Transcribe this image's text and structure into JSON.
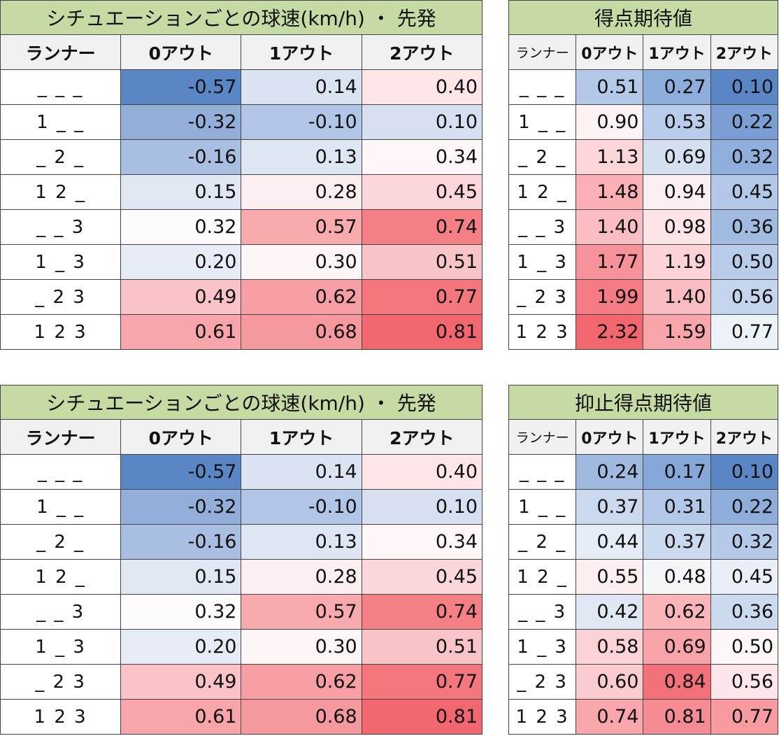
{
  "chart_data": [
    {
      "type": "table",
      "title": "シチュエーションごとの球速(km/h) ・ 先発",
      "columns": [
        "ランナー",
        "0アウト",
        "1アウト",
        "2アウト"
      ],
      "rows": [
        "_ _ _",
        "1 _ _",
        "_ 2 _",
        "1 2 _",
        "_ _ 3",
        "1 _ 3",
        "_ 2 3",
        "1 2 3"
      ],
      "values": [
        [
          "-0.57",
          "0.14",
          "0.40"
        ],
        [
          "-0.32",
          "-0.10",
          "0.10"
        ],
        [
          "-0.16",
          "0.13",
          "0.34"
        ],
        [
          "0.15",
          "0.28",
          "0.45"
        ],
        [
          "0.32",
          "0.57",
          "0.74"
        ],
        [
          "0.20",
          "0.30",
          "0.51"
        ],
        [
          "0.49",
          "0.62",
          "0.77"
        ],
        [
          "0.61",
          "0.68",
          "0.81"
        ]
      ],
      "colors": [
        [
          "#5a86c6",
          "#dae3f2",
          "#fde5e8"
        ],
        [
          "#93afd9",
          "#b1c6e6",
          "#d7e0f0"
        ],
        [
          "#a8bfe2",
          "#dfe6f3",
          "#fef6f7"
        ],
        [
          "#e0e7f3",
          "#fdeff1",
          "#fbd7dc"
        ],
        [
          "#fefbfc",
          "#f8aaaf",
          "#f47f85"
        ],
        [
          "#e6ebf5",
          "#fef5f6",
          "#f9c4c8"
        ],
        [
          "#fac3c7",
          "#f79fa5",
          "#f3777d"
        ],
        [
          "#f7a5aa",
          "#f6999f",
          "#f2676f"
        ]
      ]
    },
    {
      "type": "table",
      "title": "得点期待値",
      "columns": [
        "ランナー",
        "0アウト",
        "1アウト",
        "2アウト"
      ],
      "rows": [
        "_ _ _",
        "1 _ _",
        "_ 2 _",
        "1 2 _",
        "_ _ 3",
        "1 _ 3",
        "_ 2 3",
        "1 2 3"
      ],
      "values": [
        [
          "0.51",
          "0.27",
          "0.10"
        ],
        [
          "0.90",
          "0.53",
          "0.22"
        ],
        [
          "1.13",
          "0.69",
          "0.32"
        ],
        [
          "1.48",
          "0.94",
          "0.45"
        ],
        [
          "1.40",
          "0.98",
          "0.36"
        ],
        [
          "1.77",
          "1.19",
          "0.50"
        ],
        [
          "1.99",
          "1.40",
          "0.56"
        ],
        [
          "2.32",
          "1.59",
          "0.77"
        ]
      ],
      "colors": [
        [
          "#b4c9e8",
          "#8daddb",
          "#5a86c6"
        ],
        [
          "#fef3f4",
          "#b9cce9",
          "#7b9fd4"
        ],
        [
          "#fdd6da",
          "#d4dff0",
          "#90aedb"
        ],
        [
          "#fab0b5",
          "#fceff1",
          "#b3c8e8"
        ],
        [
          "#fabec2",
          "#fce4e7",
          "#a0bae0"
        ],
        [
          "#f7929a",
          "#fdd3d7",
          "#b9cce9"
        ],
        [
          "#f57c84",
          "#fabec2",
          "#c4d4ec"
        ],
        [
          "#f2676f",
          "#f8a6ac",
          "#edf1f8"
        ]
      ]
    },
    {
      "type": "table",
      "title": "シチュエーションごとの球速(km/h) ・ 先発",
      "columns": [
        "ランナー",
        "0アウト",
        "1アウト",
        "2アウト"
      ],
      "rows": [
        "_ _ _",
        "1 _ _",
        "_ 2 _",
        "1 2 _",
        "_ _ 3",
        "1 _ 3",
        "_ 2 3",
        "1 2 3"
      ],
      "values": [
        [
          "-0.57",
          "0.14",
          "0.40"
        ],
        [
          "-0.32",
          "-0.10",
          "0.10"
        ],
        [
          "-0.16",
          "0.13",
          "0.34"
        ],
        [
          "0.15",
          "0.28",
          "0.45"
        ],
        [
          "0.32",
          "0.57",
          "0.74"
        ],
        [
          "0.20",
          "0.30",
          "0.51"
        ],
        [
          "0.49",
          "0.62",
          "0.77"
        ],
        [
          "0.61",
          "0.68",
          "0.81"
        ]
      ],
      "colors": [
        [
          "#5a86c6",
          "#dae3f2",
          "#fde5e8"
        ],
        [
          "#93afd9",
          "#b1c6e6",
          "#d7e0f0"
        ],
        [
          "#a8bfe2",
          "#dfe6f3",
          "#fef6f7"
        ],
        [
          "#e0e7f3",
          "#fdeff1",
          "#fbd7dc"
        ],
        [
          "#fefbfc",
          "#f8aaaf",
          "#f47f85"
        ],
        [
          "#e6ebf5",
          "#fef5f6",
          "#f9c4c8"
        ],
        [
          "#fac3c7",
          "#f79fa5",
          "#f3777d"
        ],
        [
          "#f7a5aa",
          "#f6999f",
          "#f2676f"
        ]
      ]
    },
    {
      "type": "table",
      "title": "抑止得点期待値",
      "columns": [
        "ランナー",
        "0アウト",
        "1アウト",
        "2アウト"
      ],
      "rows": [
        "_ _ _",
        "1 _ _",
        "_ 2 _",
        "1 2 _",
        "_ _ 3",
        "1 _ 3",
        "_ 2 3",
        "1 2 3"
      ],
      "values": [
        [
          "0.24",
          "0.17",
          "0.10"
        ],
        [
          "0.37",
          "0.31",
          "0.22"
        ],
        [
          "0.44",
          "0.37",
          "0.32"
        ],
        [
          "0.55",
          "0.48",
          "0.45"
        ],
        [
          "0.42",
          "0.62",
          "0.36"
        ],
        [
          "0.58",
          "0.69",
          "0.50"
        ],
        [
          "0.60",
          "0.84",
          "0.56"
        ],
        [
          "0.74",
          "0.81",
          "0.77"
        ]
      ],
      "colors": [
        [
          "#9fb9df",
          "#86a8d8",
          "#5a86c6"
        ],
        [
          "#cbd9ee",
          "#b3c8e8",
          "#8fadda"
        ],
        [
          "#e5ecf6",
          "#cbd9ee",
          "#b5c9e8"
        ],
        [
          "#fdeef0",
          "#f4f6fa",
          "#e9eef7"
        ],
        [
          "#e0e7f3",
          "#f9b5ba",
          "#ccdaef"
        ],
        [
          "#fbd2d6",
          "#f8a3a9",
          "#fdf7f8"
        ],
        [
          "#facbcf",
          "#f3727a",
          "#fde6e9"
        ],
        [
          "#f9a6ac",
          "#f58c93",
          "#f79ba1"
        ]
      ]
    }
  ]
}
